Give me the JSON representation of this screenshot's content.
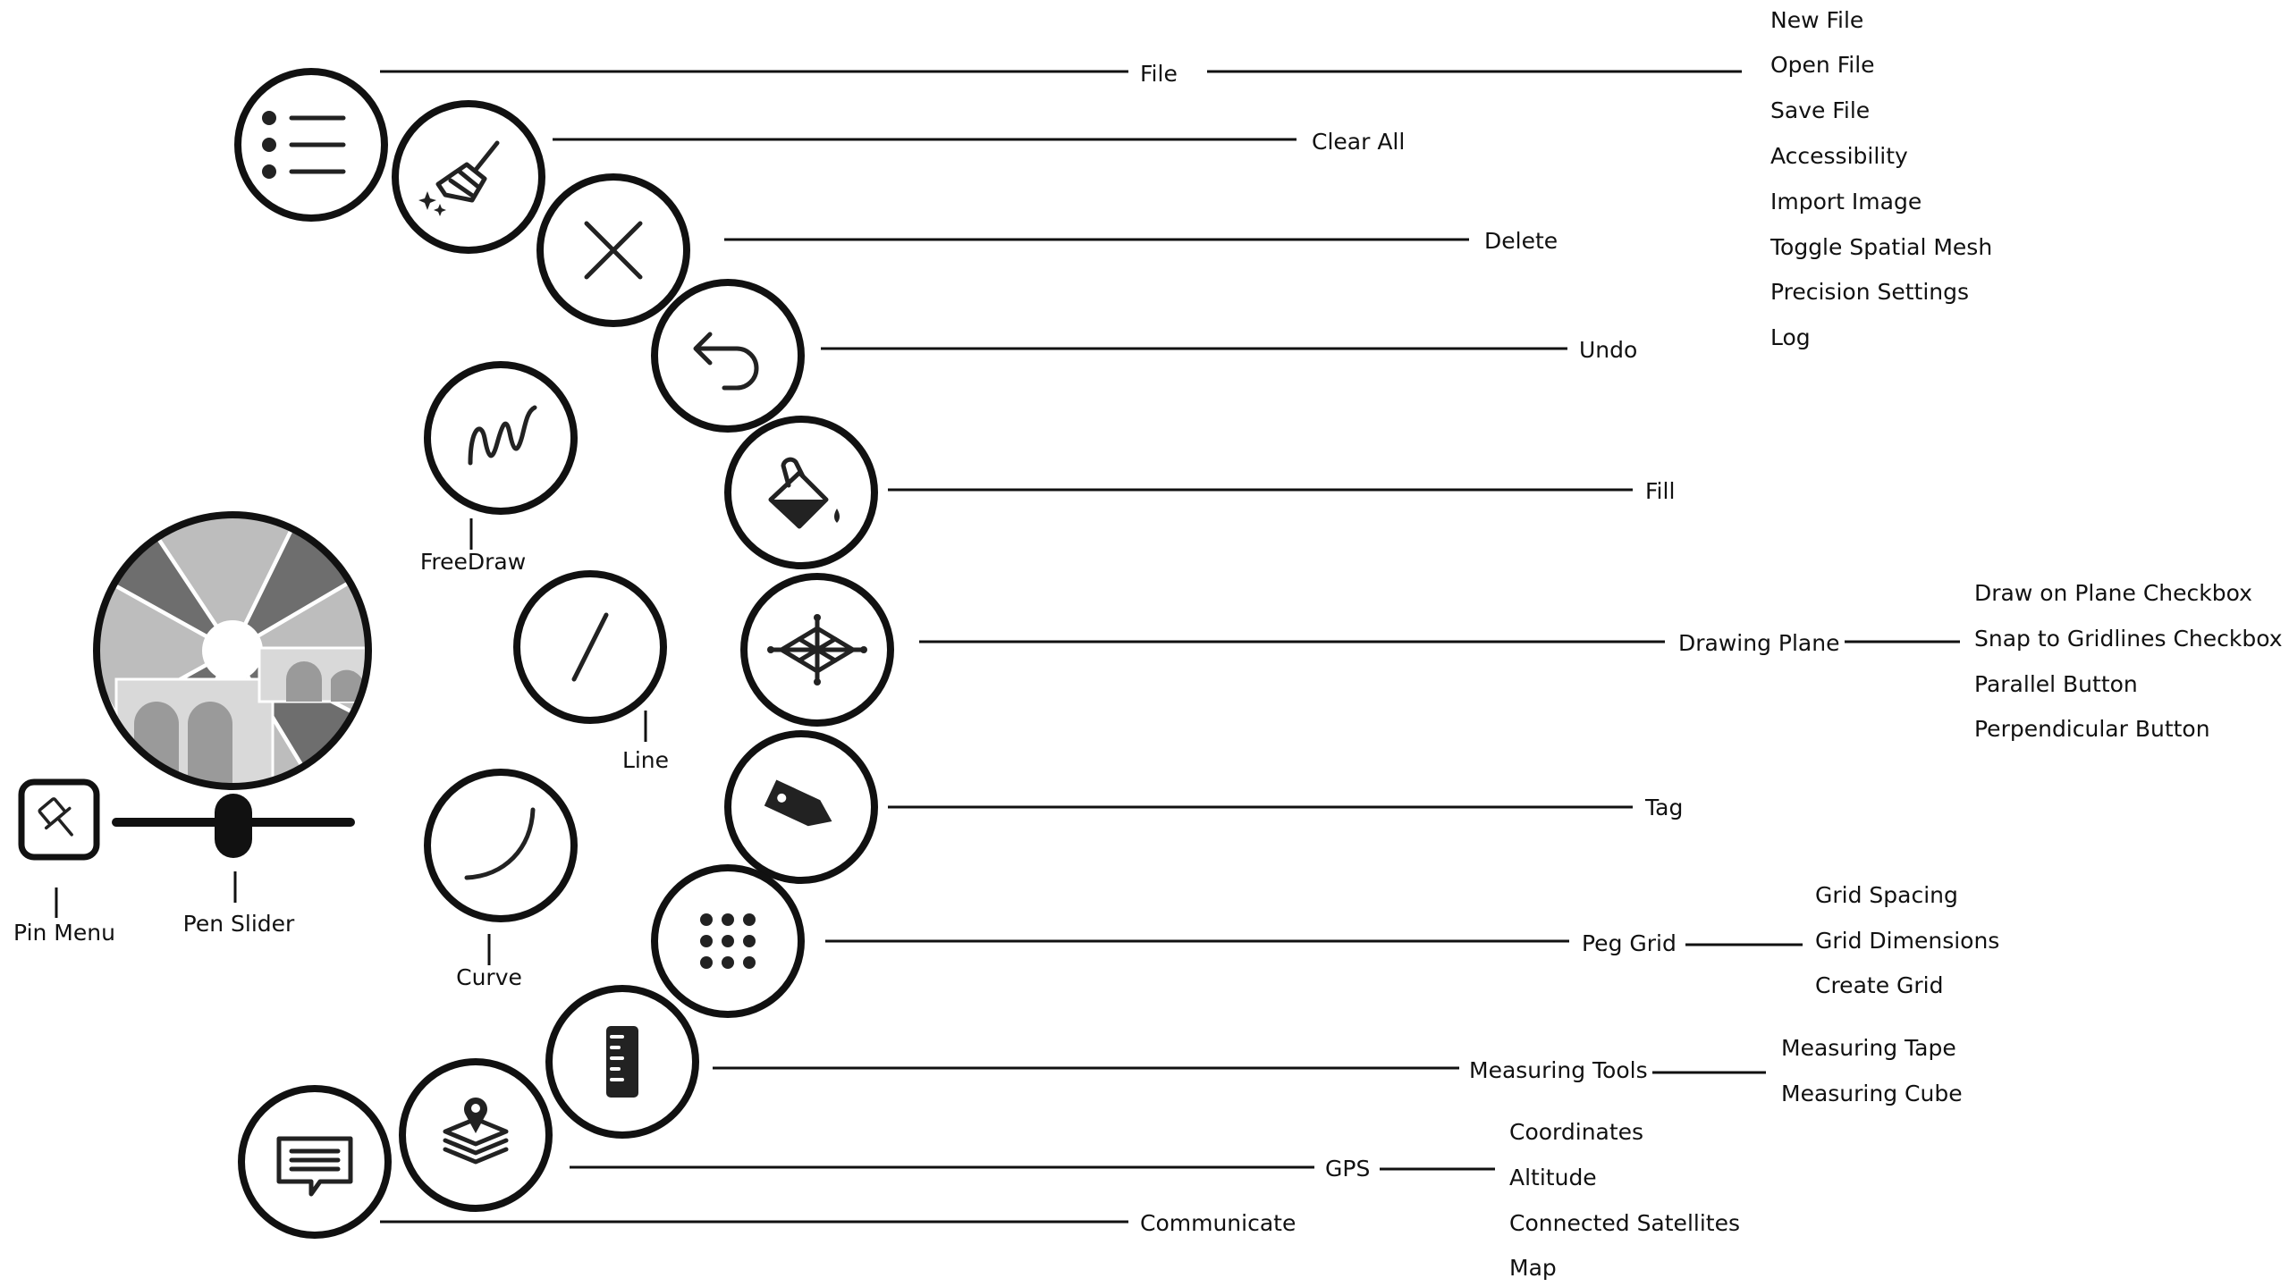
{
  "menu_buttons": {
    "file": {
      "label": "File",
      "icon": "menu-list-icon"
    },
    "clear_all": {
      "label": "Clear All",
      "icon": "broom-icon"
    },
    "delete": {
      "label": "Delete",
      "icon": "close-icon"
    },
    "undo": {
      "label": "Undo",
      "icon": "undo-arrow-icon"
    },
    "fill": {
      "label": "Fill",
      "icon": "paint-bucket-icon"
    },
    "drawing_plane": {
      "label": "Drawing Plane",
      "icon": "plane-grid-icon"
    },
    "tag": {
      "label": "Tag",
      "icon": "tag-icon"
    },
    "peg_grid": {
      "label": "Peg Grid",
      "icon": "dot-grid-icon"
    },
    "measuring_tools": {
      "label": "Measuring Tools",
      "icon": "ruler-icon"
    },
    "gps": {
      "label": "GPS",
      "icon": "map-pin-layers-icon"
    },
    "communicate": {
      "label": "Communicate",
      "icon": "chat-bubble-icon"
    }
  },
  "draw_tools": {
    "freedraw": {
      "label": "FreeDraw",
      "icon": "squiggle-icon"
    },
    "line": {
      "label": "Line",
      "icon": "straight-line-icon"
    },
    "curve": {
      "label": "Curve",
      "icon": "curve-icon"
    }
  },
  "controls": {
    "pin_menu": {
      "label": "Pin Menu",
      "icon": "pushpin-icon"
    },
    "pen_slider": {
      "label": "Pen Slider"
    },
    "aperture_icon": "camera-aperture-icon"
  },
  "submenus": {
    "file": [
      "New File",
      "Open File",
      "Save File",
      "Accessibility",
      "Import Image",
      "Toggle Spatial Mesh",
      "Precision Settings",
      "Log"
    ],
    "drawing_plane": [
      "Draw on Plane Checkbox",
      "Snap to Gridlines Checkbox",
      "Parallel Button",
      "Perpendicular Button"
    ],
    "peg_grid": [
      "Grid Spacing",
      "Grid Dimensions",
      "Create Grid"
    ],
    "measuring_tools": [
      "Measuring Tape",
      "Measuring Cube"
    ],
    "gps": [
      "Coordinates",
      "Altitude",
      "Connected Satellites",
      "Map"
    ]
  },
  "colors": {
    "ink": "#111111",
    "background": "#ffffff",
    "aperture_light": "#bdbdbd",
    "aperture_mid": "#8a8a8a"
  }
}
